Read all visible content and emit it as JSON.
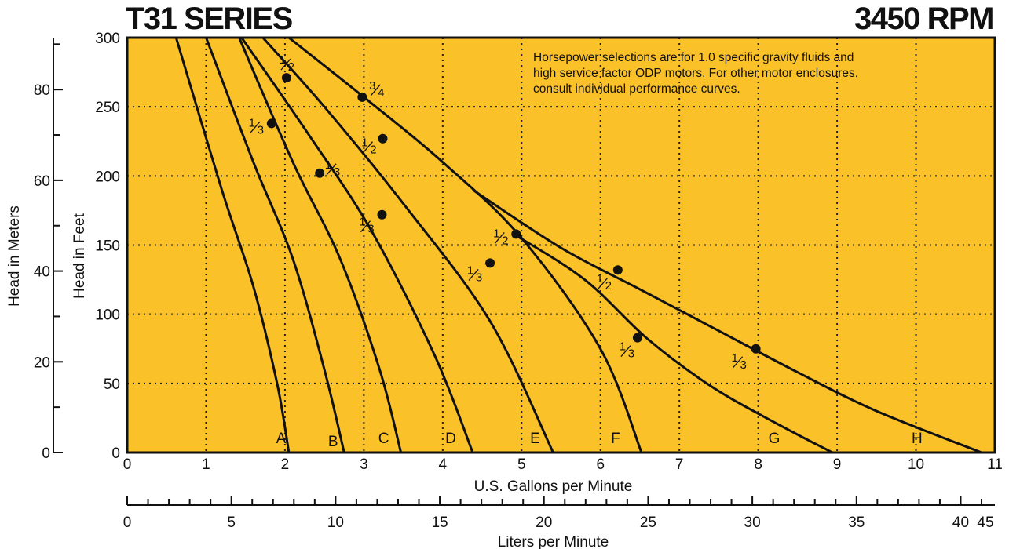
{
  "header": {
    "title_left": "T31 SERIES",
    "title_right": "3450 RPM"
  },
  "note": "Horsepower selections are for 1.0 specific gravity fluids and high service factor ODP motors. For other motor enclosures, consult individual performance curves.",
  "colors": {
    "plot_bg": "#FBC128",
    "line": "#111111"
  },
  "chart_data": {
    "type": "line",
    "title": "T31 SERIES",
    "subtitle": "3450 RPM",
    "xlabel": "U.S. Gallons per Minute",
    "ylabel": "Head in Feet",
    "xlim": [
      0,
      11
    ],
    "ylim": [
      0,
      300
    ],
    "x_ticks": [
      "0",
      "1",
      "2",
      "3",
      "4",
      "5",
      "6",
      "7",
      "8",
      "9",
      "10",
      "11"
    ],
    "y_ticks": [
      "0",
      "50",
      "100",
      "150",
      "200",
      "250",
      "300"
    ],
    "grid": true,
    "secondary_y": {
      "label": "Head in Meters",
      "ticks": [
        "0",
        "20",
        "40",
        "60",
        "80"
      ],
      "range": [
        0,
        91.44
      ]
    },
    "secondary_x": {
      "label": "Liters per Minute",
      "ticks": [
        "0",
        "5",
        "10",
        "15",
        "20",
        "25",
        "30",
        "35",
        "40",
        "45"
      ],
      "range": [
        0,
        41.64
      ]
    },
    "series": [
      {
        "name": "A",
        "x": [
          0.62,
          1.2,
          1.6,
          1.9,
          2.05
        ],
        "y": [
          300,
          190,
          120,
          50,
          0
        ],
        "hp_points": [
          {
            "x": 1.83,
            "y": 238,
            "label": "1/3"
          }
        ]
      },
      {
        "name": "B",
        "x": [
          1.0,
          1.6,
          2.1,
          2.5,
          2.75
        ],
        "y": [
          300,
          210,
          140,
          60,
          0
        ],
        "hp_points": [
          {
            "x": 2.02,
            "y": 271,
            "label": "1/2"
          },
          {
            "x": 2.44,
            "y": 202,
            "label": "1/3"
          }
        ]
      },
      {
        "name": "C",
        "x": [
          1.42,
          2.1,
          2.7,
          3.2,
          3.47
        ],
        "y": [
          300,
          210,
          140,
          60,
          0
        ],
        "hp_points": [
          {
            "x": 3.23,
            "y": 172,
            "label": "1/3"
          }
        ]
      },
      {
        "name": "D",
        "x": [
          1.45,
          2.3,
          3.1,
          3.9,
          4.38
        ],
        "y": [
          300,
          230,
          160,
          70,
          0
        ],
        "hp_points": [
          {
            "x": 3.24,
            "y": 227,
            "label": "1/2"
          }
        ]
      },
      {
        "name": "E",
        "x": [
          1.72,
          2.5,
          3.5,
          4.6,
          5.4
        ],
        "y": [
          300,
          250,
          180,
          95,
          0
        ],
        "hp_points": [
          {
            "x": 4.6,
            "y": 137,
            "label": "1/3"
          }
        ]
      },
      {
        "name": "F",
        "x": [
          2.05,
          3.0,
          4.0,
          5.0,
          6.0,
          6.52
        ],
        "y": [
          300,
          257,
          210,
          155,
          75,
          0
        ],
        "hp_points": [
          {
            "x": 2.98,
            "y": 257,
            "label": "3/4"
          },
          {
            "x": 4.93,
            "y": 158,
            "label": "1/2"
          },
          {
            "x": 6.47,
            "y": 83,
            "label": "1/3"
          }
        ]
      },
      {
        "name": "G",
        "x": [
          4.9,
          5.8,
          6.6,
          7.4,
          8.2,
          8.94
        ],
        "y": [
          158,
          125,
          82,
          48,
          22,
          0
        ],
        "hp_points": []
      },
      {
        "name": "H",
        "x": [
          4.38,
          5.5,
          6.5,
          7.5,
          8.5,
          9.5,
          10.83
        ],
        "y": [
          190,
          148,
          118,
          88,
          58,
          30,
          0
        ],
        "hp_points": [
          {
            "x": 6.22,
            "y": 132,
            "label": "1/2"
          },
          {
            "x": 7.97,
            "y": 75,
            "label": "1/3"
          }
        ]
      }
    ]
  }
}
